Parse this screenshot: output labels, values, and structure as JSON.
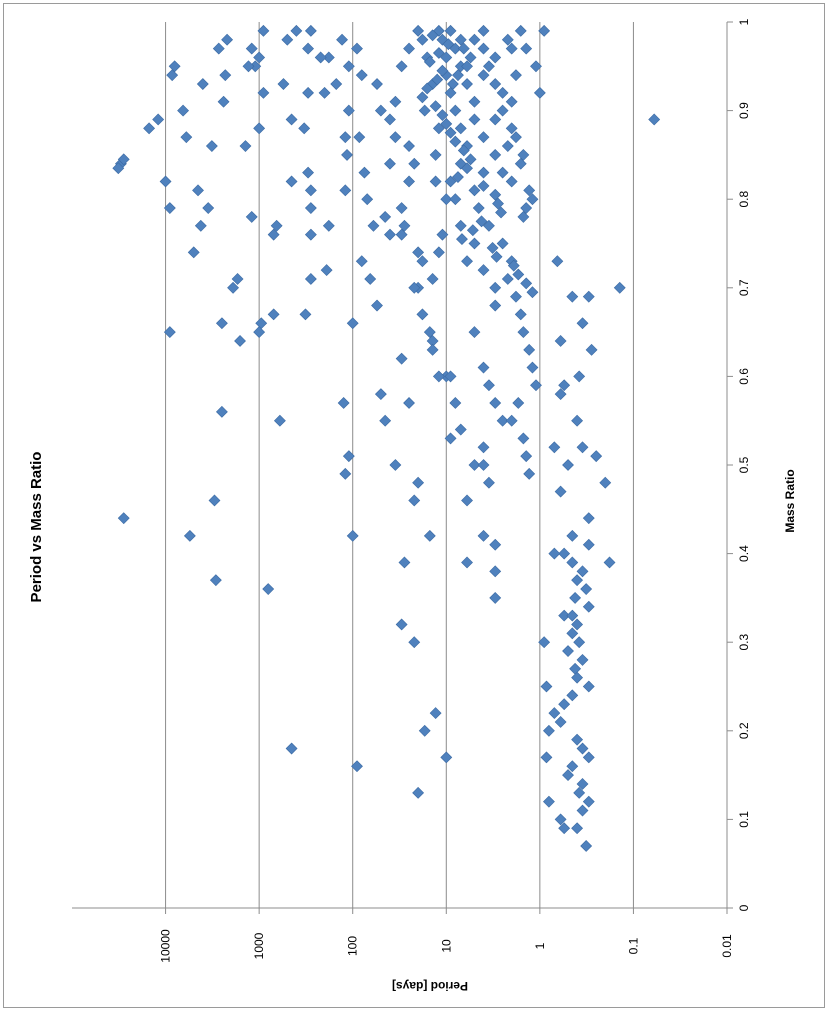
{
  "chart_data": {
    "type": "scatter",
    "orientation": "rotated-90-clockwise",
    "title": "Period vs Mass Ratio",
    "xlabel": "Mass Ratio",
    "ylabel": "Period [days]",
    "xlim": [
      0,
      1
    ],
    "ylim": [
      0.01,
      100000
    ],
    "y_scale": "log",
    "x_ticks": [
      "0",
      "0.1",
      "0.2",
      "0.3",
      "0.4",
      "0.5",
      "0.6",
      "0.7",
      "0.8",
      "0.9",
      "1"
    ],
    "y_ticks": [
      "0.01",
      "0.1",
      "1",
      "10",
      "100",
      "1000",
      "10000"
    ],
    "y_tick_values": [
      0.01,
      0.1,
      1,
      10,
      100,
      1000,
      10000
    ],
    "grid": "major-y",
    "marker": "diamond",
    "marker_color": "#4F81BD",
    "points": [
      [
        0.84,
        30000
      ],
      [
        0.835,
        32000
      ],
      [
        0.845,
        28000
      ],
      [
        0.88,
        15000
      ],
      [
        0.89,
        12000
      ],
      [
        0.44,
        28000
      ],
      [
        0.65,
        9000
      ],
      [
        0.82,
        10000
      ],
      [
        0.79,
        9000
      ],
      [
        0.94,
        8500
      ],
      [
        0.95,
        8000
      ],
      [
        0.9,
        6500
      ],
      [
        0.87,
        6000
      ],
      [
        0.74,
        5000
      ],
      [
        0.42,
        5500
      ],
      [
        0.81,
        4500
      ],
      [
        0.77,
        4200
      ],
      [
        0.93,
        4000
      ],
      [
        0.79,
        3500
      ],
      [
        0.86,
        3200
      ],
      [
        0.46,
        3000
      ],
      [
        0.37,
        2900
      ],
      [
        0.97,
        2700
      ],
      [
        0.66,
        2500
      ],
      [
        0.56,
        2500
      ],
      [
        0.91,
        2400
      ],
      [
        0.94,
        2300
      ],
      [
        0.98,
        2200
      ],
      [
        0.71,
        1700
      ],
      [
        0.7,
        1900
      ],
      [
        0.64,
        1600
      ],
      [
        0.86,
        1400
      ],
      [
        0.78,
        1200
      ],
      [
        0.95,
        1100
      ],
      [
        0.96,
        1000
      ],
      [
        0.99,
        900
      ],
      [
        0.88,
        1000
      ],
      [
        0.92,
        900
      ],
      [
        0.66,
        950
      ],
      [
        0.65,
        1000
      ],
      [
        0.97,
        1200
      ],
      [
        0.95,
        1300
      ],
      [
        0.67,
        700
      ],
      [
        0.76,
        700
      ],
      [
        0.77,
        650
      ],
      [
        0.55,
        600
      ],
      [
        0.36,
        800
      ],
      [
        0.18,
        450
      ],
      [
        0.99,
        400
      ],
      [
        0.98,
        500
      ],
      [
        0.93,
        550
      ],
      [
        0.89,
        450
      ],
      [
        0.82,
        450
      ],
      [
        0.67,
        320
      ],
      [
        0.92,
        300
      ],
      [
        0.88,
        330
      ],
      [
        0.83,
        300
      ],
      [
        0.81,
        280
      ],
      [
        0.79,
        280
      ],
      [
        0.76,
        280
      ],
      [
        0.71,
        280
      ],
      [
        0.97,
        300
      ],
      [
        0.99,
        280
      ],
      [
        0.96,
        180
      ],
      [
        0.93,
        150
      ],
      [
        0.9,
        110
      ],
      [
        0.87,
        120
      ],
      [
        0.85,
        115
      ],
      [
        0.81,
        120
      ],
      [
        0.77,
        180
      ],
      [
        0.72,
        190
      ],
      [
        0.57,
        125
      ],
      [
        0.49,
        120
      ],
      [
        0.51,
        110
      ],
      [
        0.42,
        100
      ],
      [
        0.66,
        100
      ],
      [
        0.96,
        220
      ],
      [
        0.92,
        200
      ],
      [
        0.98,
        130
      ],
      [
        0.95,
        110
      ],
      [
        0.16,
        90
      ],
      [
        0.87,
        85
      ],
      [
        0.83,
        75
      ],
      [
        0.8,
        70
      ],
      [
        0.77,
        60
      ],
      [
        0.73,
        80
      ],
      [
        0.94,
        80
      ],
      [
        0.97,
        90
      ],
      [
        0.93,
        55
      ],
      [
        0.9,
        50
      ],
      [
        0.84,
        40
      ],
      [
        0.78,
        45
      ],
      [
        0.76,
        40
      ],
      [
        0.71,
        65
      ],
      [
        0.68,
        55
      ],
      [
        0.62,
        30
      ],
      [
        0.58,
        50
      ],
      [
        0.55,
        45
      ],
      [
        0.5,
        35
      ],
      [
        0.39,
        28
      ],
      [
        0.32,
        30
      ],
      [
        0.57,
        25
      ],
      [
        0.48,
        20
      ],
      [
        0.46,
        22
      ],
      [
        0.3,
        22
      ],
      [
        0.13,
        20
      ],
      [
        0.2,
        17
      ],
      [
        0.42,
        15
      ],
      [
        0.22,
        13
      ],
      [
        0.17,
        10
      ],
      [
        0.6,
        10
      ],
      [
        0.6,
        12
      ],
      [
        0.64,
        14
      ],
      [
        0.7,
        20
      ],
      [
        0.71,
        14
      ],
      [
        0.74,
        12
      ],
      [
        0.76,
        11
      ],
      [
        0.8,
        10
      ],
      [
        0.82,
        13
      ],
      [
        0.85,
        13
      ],
      [
        0.88,
        12
      ],
      [
        0.9,
        17
      ],
      [
        0.93,
        14
      ],
      [
        0.96,
        16
      ],
      [
        0.98,
        18
      ],
      [
        0.99,
        20
      ],
      [
        0.97,
        25
      ],
      [
        0.95,
        30
      ],
      [
        0.91,
        35
      ],
      [
        0.89,
        40
      ],
      [
        0.87,
        35
      ],
      [
        0.86,
        25
      ],
      [
        0.84,
        22
      ],
      [
        0.82,
        25
      ],
      [
        0.79,
        30
      ],
      [
        0.77,
        28
      ],
      [
        0.76,
        30
      ],
      [
        0.74,
        20
      ],
      [
        0.73,
        18
      ],
      [
        0.7,
        22
      ],
      [
        0.67,
        18
      ],
      [
        0.65,
        15
      ],
      [
        0.63,
        14
      ],
      [
        0.6,
        9
      ],
      [
        0.57,
        8
      ],
      [
        0.54,
        7
      ],
      [
        0.53,
        9
      ],
      [
        0.5,
        5
      ],
      [
        0.5,
        4
      ],
      [
        0.48,
        3.5
      ],
      [
        0.46,
        6
      ],
      [
        0.42,
        4
      ],
      [
        0.39,
        6
      ],
      [
        0.38,
        3
      ],
      [
        0.35,
        3
      ],
      [
        0.41,
        3
      ],
      [
        0.52,
        4
      ],
      [
        0.55,
        2.5
      ],
      [
        0.57,
        3
      ],
      [
        0.59,
        3.5
      ],
      [
        0.61,
        4
      ],
      [
        0.65,
        5
      ],
      [
        0.68,
        3
      ],
      [
        0.7,
        3
      ],
      [
        0.72,
        4
      ],
      [
        0.73,
        6
      ],
      [
        0.75,
        5
      ],
      [
        0.77,
        7
      ],
      [
        0.8,
        8
      ],
      [
        0.82,
        9
      ],
      [
        0.84,
        7
      ],
      [
        0.86,
        6
      ],
      [
        0.88,
        7
      ],
      [
        0.9,
        8
      ],
      [
        0.92,
        9
      ],
      [
        0.94,
        10
      ],
      [
        0.96,
        10
      ],
      [
        0.98,
        11
      ],
      [
        0.99,
        12
      ],
      [
        0.97,
        8
      ],
      [
        0.95,
        7
      ],
      [
        0.93,
        6
      ],
      [
        0.91,
        5
      ],
      [
        0.89,
        5
      ],
      [
        0.87,
        4
      ],
      [
        0.85,
        3
      ],
      [
        0.83,
        4
      ],
      [
        0.81,
        5
      ],
      [
        0.79,
        4.5
      ],
      [
        0.77,
        3.5
      ],
      [
        0.75,
        2.5
      ],
      [
        0.73,
        2
      ],
      [
        0.71,
        2.2
      ],
      [
        0.69,
        1.8
      ],
      [
        0.67,
        1.6
      ],
      [
        0.65,
        1.5
      ],
      [
        0.63,
        1.3
      ],
      [
        0.61,
        1.2
      ],
      [
        0.59,
        1.1
      ],
      [
        0.57,
        1.7
      ],
      [
        0.55,
        2
      ],
      [
        0.53,
        1.5
      ],
      [
        0.51,
        1.4
      ],
      [
        0.49,
        1.3
      ],
      [
        0.99,
        4
      ],
      [
        0.98,
        5
      ],
      [
        0.97,
        4
      ],
      [
        0.96,
        3
      ],
      [
        0.95,
        3.5
      ],
      [
        0.94,
        4
      ],
      [
        0.93,
        3
      ],
      [
        0.92,
        2.5
      ],
      [
        0.91,
        2
      ],
      [
        0.9,
        2.5
      ],
      [
        0.89,
        3
      ],
      [
        0.88,
        2
      ],
      [
        0.87,
        1.8
      ],
      [
        0.86,
        2.2
      ],
      [
        0.85,
        1.5
      ],
      [
        0.84,
        1.6
      ],
      [
        0.83,
        2.5
      ],
      [
        0.82,
        2
      ],
      [
        0.81,
        1.3
      ],
      [
        0.8,
        1.2
      ],
      [
        0.79,
        1.4
      ],
      [
        0.78,
        1.5
      ],
      [
        0.95,
        1.1
      ],
      [
        0.92,
        1
      ],
      [
        0.99,
        0.9
      ],
      [
        0.97,
        1.4
      ],
      [
        0.99,
        1.6
      ],
      [
        0.94,
        1.8
      ],
      [
        0.97,
        2
      ],
      [
        0.98,
        2.2
      ],
      [
        0.96,
        5.5
      ],
      [
        0.95,
        6
      ],
      [
        0.97,
        6.5
      ],
      [
        0.94,
        7.5
      ],
      [
        0.93,
        8.5
      ],
      [
        0.99,
        9
      ],
      [
        0.98,
        7
      ],
      [
        0.975,
        9.5
      ],
      [
        0.985,
        14
      ],
      [
        0.955,
        15
      ],
      [
        0.965,
        12
      ],
      [
        0.945,
        11
      ],
      [
        0.935,
        12.5
      ],
      [
        0.925,
        16
      ],
      [
        0.915,
        18
      ],
      [
        0.905,
        13
      ],
      [
        0.895,
        11
      ],
      [
        0.885,
        10
      ],
      [
        0.875,
        9
      ],
      [
        0.865,
        8
      ],
      [
        0.855,
        6.5
      ],
      [
        0.845,
        5.5
      ],
      [
        0.835,
        6
      ],
      [
        0.825,
        7.5
      ],
      [
        0.815,
        4
      ],
      [
        0.805,
        3
      ],
      [
        0.795,
        2.8
      ],
      [
        0.785,
        2.6
      ],
      [
        0.775,
        4.2
      ],
      [
        0.765,
        5.2
      ],
      [
        0.755,
        6.8
      ],
      [
        0.745,
        3.2
      ],
      [
        0.735,
        2.9
      ],
      [
        0.725,
        1.9
      ],
      [
        0.715,
        1.7
      ],
      [
        0.705,
        1.4
      ],
      [
        0.695,
        1.2
      ],
      [
        0.89,
        0.06
      ],
      [
        0.7,
        0.14
      ],
      [
        0.69,
        0.3
      ],
      [
        0.66,
        0.35
      ],
      [
        0.64,
        0.6
      ],
      [
        0.63,
        0.28
      ],
      [
        0.6,
        0.38
      ],
      [
        0.58,
        0.6
      ],
      [
        0.55,
        0.4
      ],
      [
        0.52,
        0.7
      ],
      [
        0.51,
        0.25
      ],
      [
        0.5,
        0.5
      ],
      [
        0.48,
        0.2
      ],
      [
        0.47,
        0.6
      ],
      [
        0.44,
        0.3
      ],
      [
        0.41,
        0.3
      ],
      [
        0.39,
        0.18
      ],
      [
        0.4,
        0.55
      ],
      [
        0.39,
        0.45
      ],
      [
        0.38,
        0.35
      ],
      [
        0.37,
        0.4
      ],
      [
        0.36,
        0.32
      ],
      [
        0.35,
        0.42
      ],
      [
        0.34,
        0.3
      ],
      [
        0.33,
        0.55
      ],
      [
        0.32,
        0.4
      ],
      [
        0.31,
        0.45
      ],
      [
        0.3,
        0.38
      ],
      [
        0.29,
        0.5
      ],
      [
        0.28,
        0.35
      ],
      [
        0.27,
        0.42
      ],
      [
        0.26,
        0.4
      ],
      [
        0.25,
        0.3
      ],
      [
        0.24,
        0.45
      ],
      [
        0.23,
        0.55
      ],
      [
        0.22,
        0.7
      ],
      [
        0.21,
        0.6
      ],
      [
        0.2,
        0.8
      ],
      [
        0.19,
        0.4
      ],
      [
        0.18,
        0.35
      ],
      [
        0.17,
        0.3
      ],
      [
        0.16,
        0.45
      ],
      [
        0.15,
        0.5
      ],
      [
        0.14,
        0.35
      ],
      [
        0.13,
        0.38
      ],
      [
        0.12,
        0.3
      ],
      [
        0.11,
        0.35
      ],
      [
        0.1,
        0.6
      ],
      [
        0.09,
        0.55
      ],
      [
        0.09,
        0.4
      ],
      [
        0.07,
        0.32
      ],
      [
        0.12,
        0.8
      ],
      [
        0.17,
        0.85
      ],
      [
        0.25,
        0.85
      ],
      [
        0.3,
        0.9
      ],
      [
        0.33,
        0.45
      ],
      [
        0.4,
        0.7
      ],
      [
        0.42,
        0.45
      ],
      [
        0.52,
        0.35
      ],
      [
        0.59,
        0.55
      ],
      [
        0.69,
        0.45
      ],
      [
        0.73,
        0.65
      ]
    ]
  }
}
